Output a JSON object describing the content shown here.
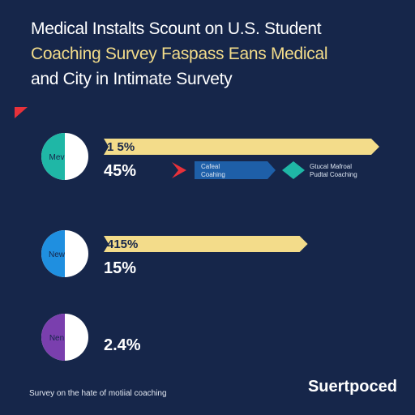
{
  "title_lines": [
    "Medical Instalts Scount on U.S. Student",
    "Coaching Survey Faspass Eans Medical",
    "and City in Intimate Survety"
  ],
  "footnote": "Survey on the hate of motiial coaching",
  "brand": "Suertpoced",
  "colors": {
    "background": "#16264a",
    "bar": "#f3dc8a",
    "white": "#ffffff",
    "teal": "#1fb7a6",
    "blue": "#1f8fe0",
    "purple": "#7a3fae",
    "legend_red": "#e8313a",
    "legend_blue": "#1e5fa8"
  },
  "chart_data": {
    "type": "bar",
    "title": "Medical Instalts Scount on U.S. Student Coaching Survey Faspass Eans Medical and City in Intimate Survety",
    "legend": {
      "placement": "top-right",
      "entries": [
        {
          "name": "Cafeаl Coahing",
          "color": "#1e5fa8",
          "marker": "#e8313a"
        },
        {
          "name": "Gtucal Mafroal Pudtal Coaching",
          "color": "#1fb7a6",
          "marker": "#1fb7a6"
        }
      ]
    },
    "rows": [
      {
        "circle_label": "Mev",
        "circle_color": "#1fb7a6",
        "circle_share": 0.5,
        "bar_label": "1 5%",
        "bar_value": 1.0,
        "pct_label": "45%"
      },
      {
        "circle_label": "New",
        "circle_color": "#1f8fe0",
        "circle_share": 0.5,
        "bar_label": "415%",
        "bar_value": 0.74,
        "pct_label": "15%"
      },
      {
        "circle_label": "Nen",
        "circle_color": "#7a3fae",
        "circle_share": 0.5,
        "bar_label": "",
        "bar_value": 0,
        "pct_label": "2.4%"
      }
    ]
  }
}
